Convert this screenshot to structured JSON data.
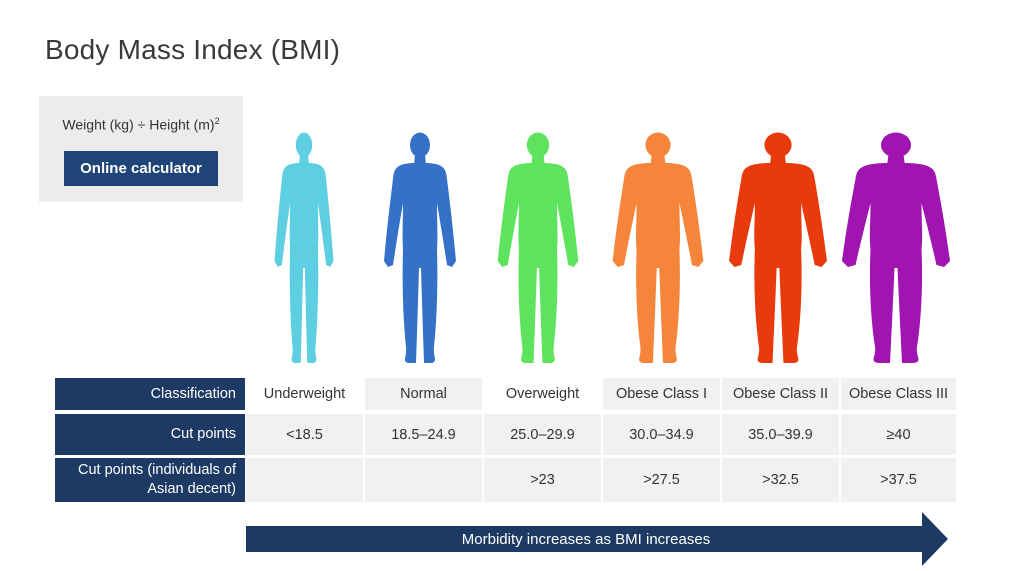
{
  "title": "Body Mass Index (BMI)",
  "formula": {
    "text": "Weight (kg) ÷ Height (m)",
    "exponent": "2",
    "button_label": "Online calculator"
  },
  "categories": [
    {
      "label": "Underweight",
      "cut": "<18.5",
      "asian": "",
      "color": "#5ecfe0"
    },
    {
      "label": "Normal",
      "cut": "18.5–24.9",
      "asian": "",
      "color": "#3471c7"
    },
    {
      "label": "Overweight",
      "cut": "25.0–29.9",
      "asian": ">23",
      "color": "#5ee35e"
    },
    {
      "label": "Obese Class I",
      "cut": "30.0–34.9",
      "asian": ">27.5",
      "color": "#f5853a"
    },
    {
      "label": "Obese Class II",
      "cut": "35.0–39.9",
      "asian": ">32.5",
      "color": "#e83a0c"
    },
    {
      "label": "Obese Class III",
      "cut": "≥40",
      "asian": ">37.5",
      "color": "#a014b0"
    }
  ],
  "table": {
    "row_headers": [
      "Classification",
      "Cut points",
      "Cut points (individuals of Asian decent)"
    ]
  },
  "arrow_label": "Morbidity increases as BMI increases",
  "colors": {
    "navy": "#1c3a64",
    "button": "#1f4478",
    "cell_bg": "#f1f1f1"
  }
}
